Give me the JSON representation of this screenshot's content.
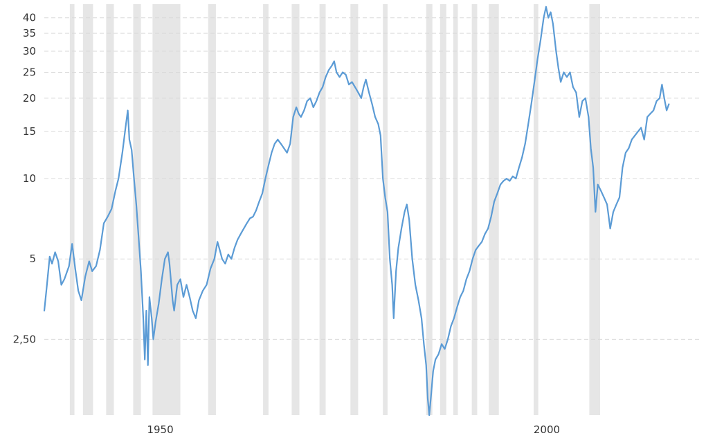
{
  "colors": {
    "line": "#5b9bd5",
    "recession": "#e6e6e6",
    "grid": "#d9d9d9",
    "text": "#333333"
  },
  "chart_data": {
    "type": "line",
    "title": "",
    "xlabel": "",
    "ylabel": "",
    "y_scale": "log",
    "ylim": [
      1.3,
      45
    ],
    "xlim": [
      1935.0,
      2019.7
    ],
    "grid": true,
    "y_ticks": [
      {
        "value": 40,
        "label": "40"
      },
      {
        "value": 35,
        "label": "35"
      },
      {
        "value": 30,
        "label": "30"
      },
      {
        "value": 25,
        "label": "25"
      },
      {
        "value": 20,
        "label": "20"
      },
      {
        "value": 15,
        "label": "15"
      },
      {
        "value": 10,
        "label": "10"
      },
      {
        "value": 5,
        "label": "5"
      },
      {
        "value": 2.5,
        "label": "2,50"
      }
    ],
    "x_ticks": [
      {
        "value": 1950,
        "label": "1950"
      },
      {
        "value": 2000,
        "label": "2000"
      }
    ],
    "recessions": [
      [
        1938.3,
        1938.9
      ],
      [
        1940.0,
        1941.3
      ],
      [
        1943.0,
        1944.0
      ],
      [
        1946.5,
        1947.5
      ],
      [
        1949.0,
        1952.6
      ],
      [
        1956.2,
        1957.2
      ],
      [
        1963.3,
        1964.0
      ],
      [
        1967.0,
        1968.0
      ],
      [
        1970.6,
        1971.4
      ],
      [
        1974.6,
        1975.6
      ],
      [
        1978.8,
        1979.4
      ],
      [
        1984.4,
        1985.2
      ],
      [
        1986.2,
        1987.0
      ],
      [
        1987.9,
        1988.5
      ],
      [
        1990.3,
        1991.0
      ],
      [
        1992.5,
        1993.8
      ],
      [
        1998.3,
        1998.9
      ],
      [
        2005.5,
        2006.9
      ]
    ],
    "series": [
      {
        "values": [
          [
            1935.0,
            3.2
          ],
          [
            1935.3,
            3.9
          ],
          [
            1935.7,
            5.1
          ],
          [
            1936.0,
            4.8
          ],
          [
            1936.4,
            5.3
          ],
          [
            1936.8,
            4.9
          ],
          [
            1937.2,
            4.0
          ],
          [
            1937.6,
            4.2
          ],
          [
            1938.2,
            4.7
          ],
          [
            1938.6,
            5.7
          ],
          [
            1939.0,
            4.6
          ],
          [
            1939.4,
            3.8
          ],
          [
            1939.8,
            3.5
          ],
          [
            1940.3,
            4.3
          ],
          [
            1940.8,
            4.9
          ],
          [
            1941.2,
            4.5
          ],
          [
            1941.7,
            4.7
          ],
          [
            1942.2,
            5.4
          ],
          [
            1942.7,
            6.8
          ],
          [
            1943.2,
            7.2
          ],
          [
            1943.7,
            7.7
          ],
          [
            1944.2,
            9.0
          ],
          [
            1944.6,
            10.0
          ],
          [
            1945.1,
            12.5
          ],
          [
            1945.5,
            15.5
          ],
          [
            1945.8,
            18.0
          ],
          [
            1946.0,
            14.0
          ],
          [
            1946.3,
            12.8
          ],
          [
            1946.6,
            10.0
          ],
          [
            1946.9,
            8.0
          ],
          [
            1947.2,
            6.0
          ],
          [
            1947.5,
            4.5
          ],
          [
            1947.8,
            3.0
          ],
          [
            1948.0,
            2.1
          ],
          [
            1948.2,
            3.2
          ],
          [
            1948.4,
            2.0
          ],
          [
            1948.6,
            3.6
          ],
          [
            1948.9,
            3.0
          ],
          [
            1949.1,
            2.5
          ],
          [
            1949.4,
            2.9
          ],
          [
            1949.8,
            3.4
          ],
          [
            1950.2,
            4.2
          ],
          [
            1950.6,
            5.0
          ],
          [
            1951.0,
            5.3
          ],
          [
            1951.2,
            4.8
          ],
          [
            1951.6,
            3.5
          ],
          [
            1951.8,
            3.2
          ],
          [
            1952.2,
            4.0
          ],
          [
            1952.6,
            4.2
          ],
          [
            1953.0,
            3.6
          ],
          [
            1953.4,
            4.0
          ],
          [
            1953.8,
            3.6
          ],
          [
            1954.2,
            3.2
          ],
          [
            1954.6,
            3.0
          ],
          [
            1955.0,
            3.5
          ],
          [
            1955.5,
            3.8
          ],
          [
            1956.0,
            4.0
          ],
          [
            1956.5,
            4.6
          ],
          [
            1957.0,
            5.0
          ],
          [
            1957.4,
            5.8
          ],
          [
            1957.7,
            5.4
          ],
          [
            1958.0,
            5.0
          ],
          [
            1958.4,
            4.8
          ],
          [
            1958.8,
            5.2
          ],
          [
            1959.2,
            5.0
          ],
          [
            1959.6,
            5.5
          ],
          [
            1960.0,
            5.9
          ],
          [
            1960.4,
            6.2
          ],
          [
            1960.8,
            6.5
          ],
          [
            1961.2,
            6.8
          ],
          [
            1961.6,
            7.1
          ],
          [
            1962.0,
            7.2
          ],
          [
            1962.4,
            7.6
          ],
          [
            1962.8,
            8.2
          ],
          [
            1963.2,
            8.8
          ],
          [
            1963.6,
            10.0
          ],
          [
            1964.0,
            11.2
          ],
          [
            1964.4,
            12.5
          ],
          [
            1964.8,
            13.5
          ],
          [
            1965.2,
            14.0
          ],
          [
            1965.6,
            13.5
          ],
          [
            1966.0,
            13.0
          ],
          [
            1966.4,
            12.5
          ],
          [
            1966.8,
            13.5
          ],
          [
            1967.2,
            17.0
          ],
          [
            1967.6,
            18.5
          ],
          [
            1967.9,
            17.5
          ],
          [
            1968.2,
            17.0
          ],
          [
            1968.6,
            18.0
          ],
          [
            1969.0,
            19.5
          ],
          [
            1969.4,
            20.0
          ],
          [
            1969.8,
            18.5
          ],
          [
            1970.2,
            19.5
          ],
          [
            1970.6,
            21.0
          ],
          [
            1971.0,
            22.0
          ],
          [
            1971.4,
            24.0
          ],
          [
            1971.8,
            25.5
          ],
          [
            1972.2,
            26.5
          ],
          [
            1972.5,
            27.5
          ],
          [
            1972.8,
            25.0
          ],
          [
            1973.2,
            24.0
          ],
          [
            1973.6,
            25.0
          ],
          [
            1974.0,
            24.5
          ],
          [
            1974.4,
            22.5
          ],
          [
            1974.8,
            23.0
          ],
          [
            1975.2,
            22.0
          ],
          [
            1975.6,
            21.0
          ],
          [
            1976.0,
            20.0
          ],
          [
            1976.3,
            22.0
          ],
          [
            1976.6,
            23.5
          ],
          [
            1977.0,
            21.0
          ],
          [
            1977.4,
            19.0
          ],
          [
            1977.8,
            17.0
          ],
          [
            1978.2,
            16.0
          ],
          [
            1978.5,
            14.5
          ],
          [
            1978.8,
            10.0
          ],
          [
            1979.1,
            8.5
          ],
          [
            1979.4,
            7.5
          ],
          [
            1979.7,
            5.0
          ],
          [
            1980.0,
            4.0
          ],
          [
            1980.2,
            3.0
          ],
          [
            1980.5,
            4.5
          ],
          [
            1980.8,
            5.5
          ],
          [
            1981.2,
            6.5
          ],
          [
            1981.6,
            7.5
          ],
          [
            1981.9,
            8.0
          ],
          [
            1982.2,
            7.0
          ],
          [
            1982.6,
            5.0
          ],
          [
            1983.0,
            4.0
          ],
          [
            1983.4,
            3.5
          ],
          [
            1983.8,
            3.0
          ],
          [
            1984.1,
            2.4
          ],
          [
            1984.4,
            2.0
          ],
          [
            1984.6,
            1.5
          ],
          [
            1984.8,
            1.3
          ],
          [
            1985.0,
            1.5
          ],
          [
            1985.3,
            1.9
          ],
          [
            1985.6,
            2.1
          ],
          [
            1986.0,
            2.2
          ],
          [
            1986.4,
            2.4
          ],
          [
            1986.8,
            2.3
          ],
          [
            1987.2,
            2.5
          ],
          [
            1987.6,
            2.8
          ],
          [
            1988.0,
            3.0
          ],
          [
            1988.4,
            3.3
          ],
          [
            1988.8,
            3.6
          ],
          [
            1989.2,
            3.8
          ],
          [
            1989.6,
            4.2
          ],
          [
            1990.0,
            4.5
          ],
          [
            1990.4,
            5.0
          ],
          [
            1990.8,
            5.4
          ],
          [
            1991.2,
            5.6
          ],
          [
            1991.6,
            5.8
          ],
          [
            1992.0,
            6.2
          ],
          [
            1992.4,
            6.5
          ],
          [
            1992.8,
            7.2
          ],
          [
            1993.2,
            8.2
          ],
          [
            1993.6,
            8.8
          ],
          [
            1994.0,
            9.5
          ],
          [
            1994.4,
            9.8
          ],
          [
            1994.8,
            10.0
          ],
          [
            1995.2,
            9.8
          ],
          [
            1995.6,
            10.2
          ],
          [
            1996.0,
            10.0
          ],
          [
            1996.4,
            11.0
          ],
          [
            1996.8,
            12.0
          ],
          [
            1997.2,
            13.5
          ],
          [
            1997.6,
            16.0
          ],
          [
            1998.0,
            19.0
          ],
          [
            1998.4,
            23.0
          ],
          [
            1998.8,
            28.0
          ],
          [
            1999.2,
            33.0
          ],
          [
            1999.6,
            40.0
          ],
          [
            1999.9,
            44.0
          ],
          [
            2000.2,
            40.0
          ],
          [
            2000.5,
            42.0
          ],
          [
            2000.8,
            38.0
          ],
          [
            2001.2,
            30.0
          ],
          [
            2001.5,
            26.0
          ],
          [
            2001.8,
            23.0
          ],
          [
            2002.2,
            25.0
          ],
          [
            2002.6,
            24.0
          ],
          [
            2003.0,
            25.0
          ],
          [
            2003.4,
            22.0
          ],
          [
            2003.8,
            21.0
          ],
          [
            2004.2,
            17.0
          ],
          [
            2004.6,
            19.5
          ],
          [
            2005.0,
            20.0
          ],
          [
            2005.4,
            17.0
          ],
          [
            2005.7,
            13.0
          ],
          [
            2006.0,
            11.0
          ],
          [
            2006.3,
            7.5
          ],
          [
            2006.6,
            9.5
          ],
          [
            2007.0,
            9.0
          ],
          [
            2007.4,
            8.5
          ],
          [
            2007.8,
            8.0
          ],
          [
            2008.2,
            6.5
          ],
          [
            2008.6,
            7.5
          ],
          [
            2009.0,
            8.0
          ],
          [
            2009.4,
            8.5
          ],
          [
            2009.8,
            11.0
          ],
          [
            2010.2,
            12.5
          ],
          [
            2010.6,
            13.0
          ],
          [
            2011.0,
            14.0
          ],
          [
            2011.4,
            14.5
          ],
          [
            2011.8,
            15.0
          ],
          [
            2012.2,
            15.5
          ],
          [
            2012.6,
            14.0
          ],
          [
            2013.0,
            17.0
          ],
          [
            2013.4,
            17.5
          ],
          [
            2013.8,
            18.0
          ],
          [
            2014.2,
            19.5
          ],
          [
            2014.6,
            20.0
          ],
          [
            2014.9,
            22.5
          ],
          [
            2015.2,
            20.0
          ],
          [
            2015.5,
            18.0
          ],
          [
            2015.8,
            19.0
          ]
        ]
      }
    ]
  }
}
